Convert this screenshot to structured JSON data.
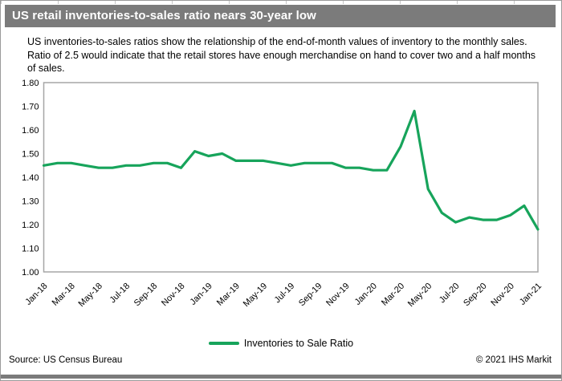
{
  "header": {
    "title": "US retail inventories-to-sales ratio nears 30-year low",
    "bg_color": "#7b7b7b",
    "text_color": "#ffffff"
  },
  "description": {
    "text": "US inventories-to-sales ratios show the relationship of the end-of-month values of inventory to the monthly sales. Ratio of 2.5 would indicate that the retail stores have enough merchandise on hand to cover two and a half months of sales."
  },
  "chart_data": {
    "type": "line",
    "title": "US retail inventories-to-sales ratio nears 30-year low",
    "x": [
      "Jan-18",
      "Feb-18",
      "Mar-18",
      "Apr-18",
      "May-18",
      "Jun-18",
      "Jul-18",
      "Aug-18",
      "Sep-18",
      "Oct-18",
      "Nov-18",
      "Dec-18",
      "Jan-19",
      "Feb-19",
      "Mar-19",
      "Apr-19",
      "May-19",
      "Jun-19",
      "Jul-19",
      "Aug-19",
      "Sep-19",
      "Oct-19",
      "Nov-19",
      "Dec-19",
      "Jan-20",
      "Feb-20",
      "Mar-20",
      "Apr-20",
      "May-20",
      "Jun-20",
      "Jul-20",
      "Aug-20",
      "Sep-20",
      "Oct-20",
      "Nov-20",
      "Dec-20",
      "Jan-21"
    ],
    "series": [
      {
        "name": "Inventories to Sale Ratio",
        "color": "#17a45b",
        "values": [
          1.45,
          1.46,
          1.46,
          1.45,
          1.44,
          1.44,
          1.45,
          1.45,
          1.46,
          1.46,
          1.44,
          1.51,
          1.49,
          1.5,
          1.47,
          1.47,
          1.47,
          1.46,
          1.45,
          1.46,
          1.46,
          1.46,
          1.44,
          1.44,
          1.43,
          1.43,
          1.53,
          1.68,
          1.35,
          1.25,
          1.21,
          1.23,
          1.22,
          1.22,
          1.24,
          1.28,
          1.18
        ]
      }
    ],
    "ylim": [
      1.0,
      1.8
    ],
    "ytick_labels": [
      "1.80",
      "1.70",
      "1.60",
      "1.50",
      "1.40",
      "1.30",
      "1.20",
      "1.10",
      "1.00"
    ],
    "xtick_labels": [
      "Jan-18",
      "Mar-18",
      "May-18",
      "Jul-18",
      "Sep-18",
      "Nov-18",
      "Jan-19",
      "Mar-19",
      "May-19",
      "Jul-19",
      "Sep-19",
      "Nov-19",
      "Jan-20",
      "Mar-20",
      "May-20",
      "Jul-20",
      "Sep-20",
      "Nov-20",
      "Jan-21"
    ],
    "grid": false,
    "legend_position": "bottom-center",
    "plot_border_color": "#a6a6a6",
    "tick_label_color": "#000000"
  },
  "legend": {
    "label": "Inventories to Sale Ratio",
    "swatch_color": "#17a45b"
  },
  "footer": {
    "source": "Source: US Census Bureau",
    "copyright": "© 2021 IHS Markit"
  }
}
